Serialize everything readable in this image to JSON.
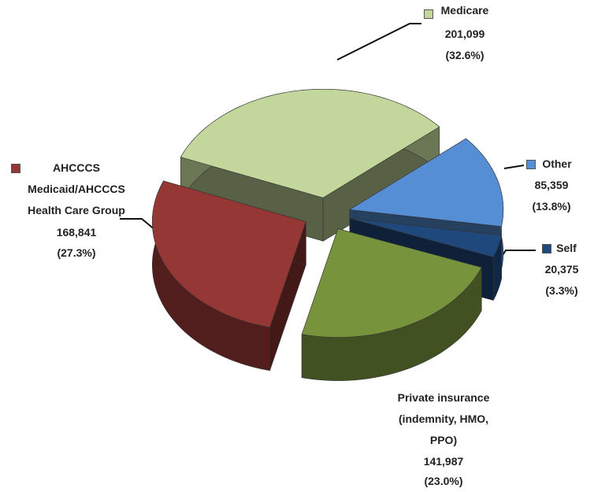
{
  "chart_data": {
    "type": "pie",
    "categories": [
      "Medicare",
      "Other",
      "Self",
      "Private insurance (indemnity, HMO, PPO)",
      "AHCCCS Medicaid/AHCCCS Health Care Group"
    ],
    "values": [
      201099,
      85359,
      20375,
      141987,
      168841
    ],
    "value_labels": [
      "201,099",
      "85,359",
      "20,375",
      "141,987",
      "168,841"
    ],
    "percent_labels": [
      "(32.6%)",
      "(13.8%)",
      "(3.3%)",
      "(23.0%)",
      "(27.3%)"
    ],
    "colors": [
      "#c3d69b",
      "#558ed5",
      "#1f497d",
      "#77933c",
      "#953735"
    ]
  }
}
